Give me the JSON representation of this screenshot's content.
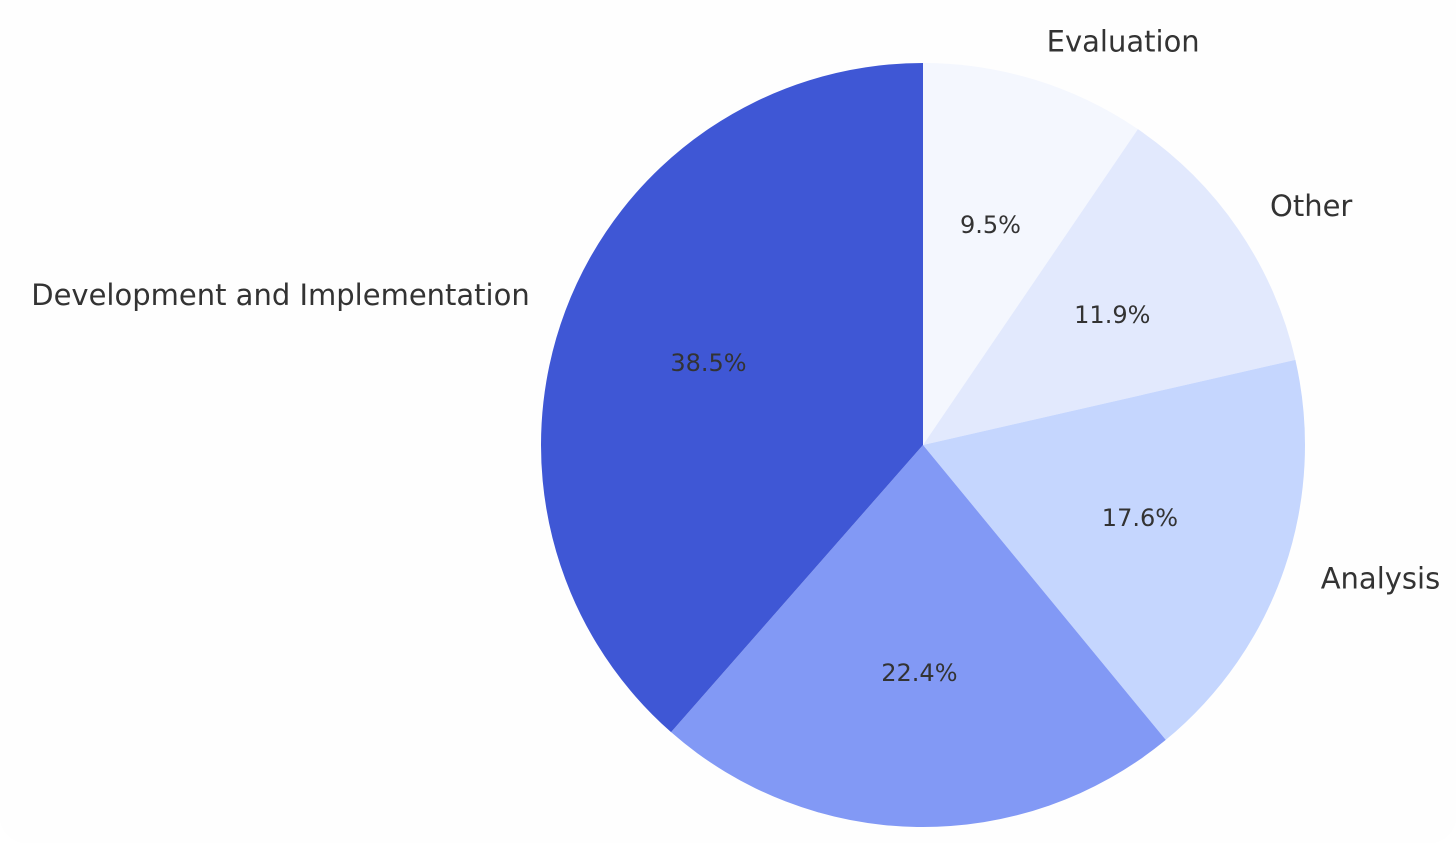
{
  "chart_data": {
    "type": "pie",
    "title": "",
    "categories": [
      "Evaluation",
      "Other",
      "Analysis",
      "",
      "Development and Implementation"
    ],
    "values": [
      9.5,
      11.9,
      17.6,
      22.4,
      38.5
    ],
    "value_labels": [
      "9.5%",
      "11.9%",
      "17.6%",
      "22.4%",
      "38.5%"
    ],
    "colors": [
      "#f4f7fe",
      "#e2e9fd",
      "#c5d6fe",
      "#8299f5",
      "#3f57d5"
    ],
    "start_angle": "12 o'clock",
    "direction": "clockwise",
    "legend": "none"
  }
}
